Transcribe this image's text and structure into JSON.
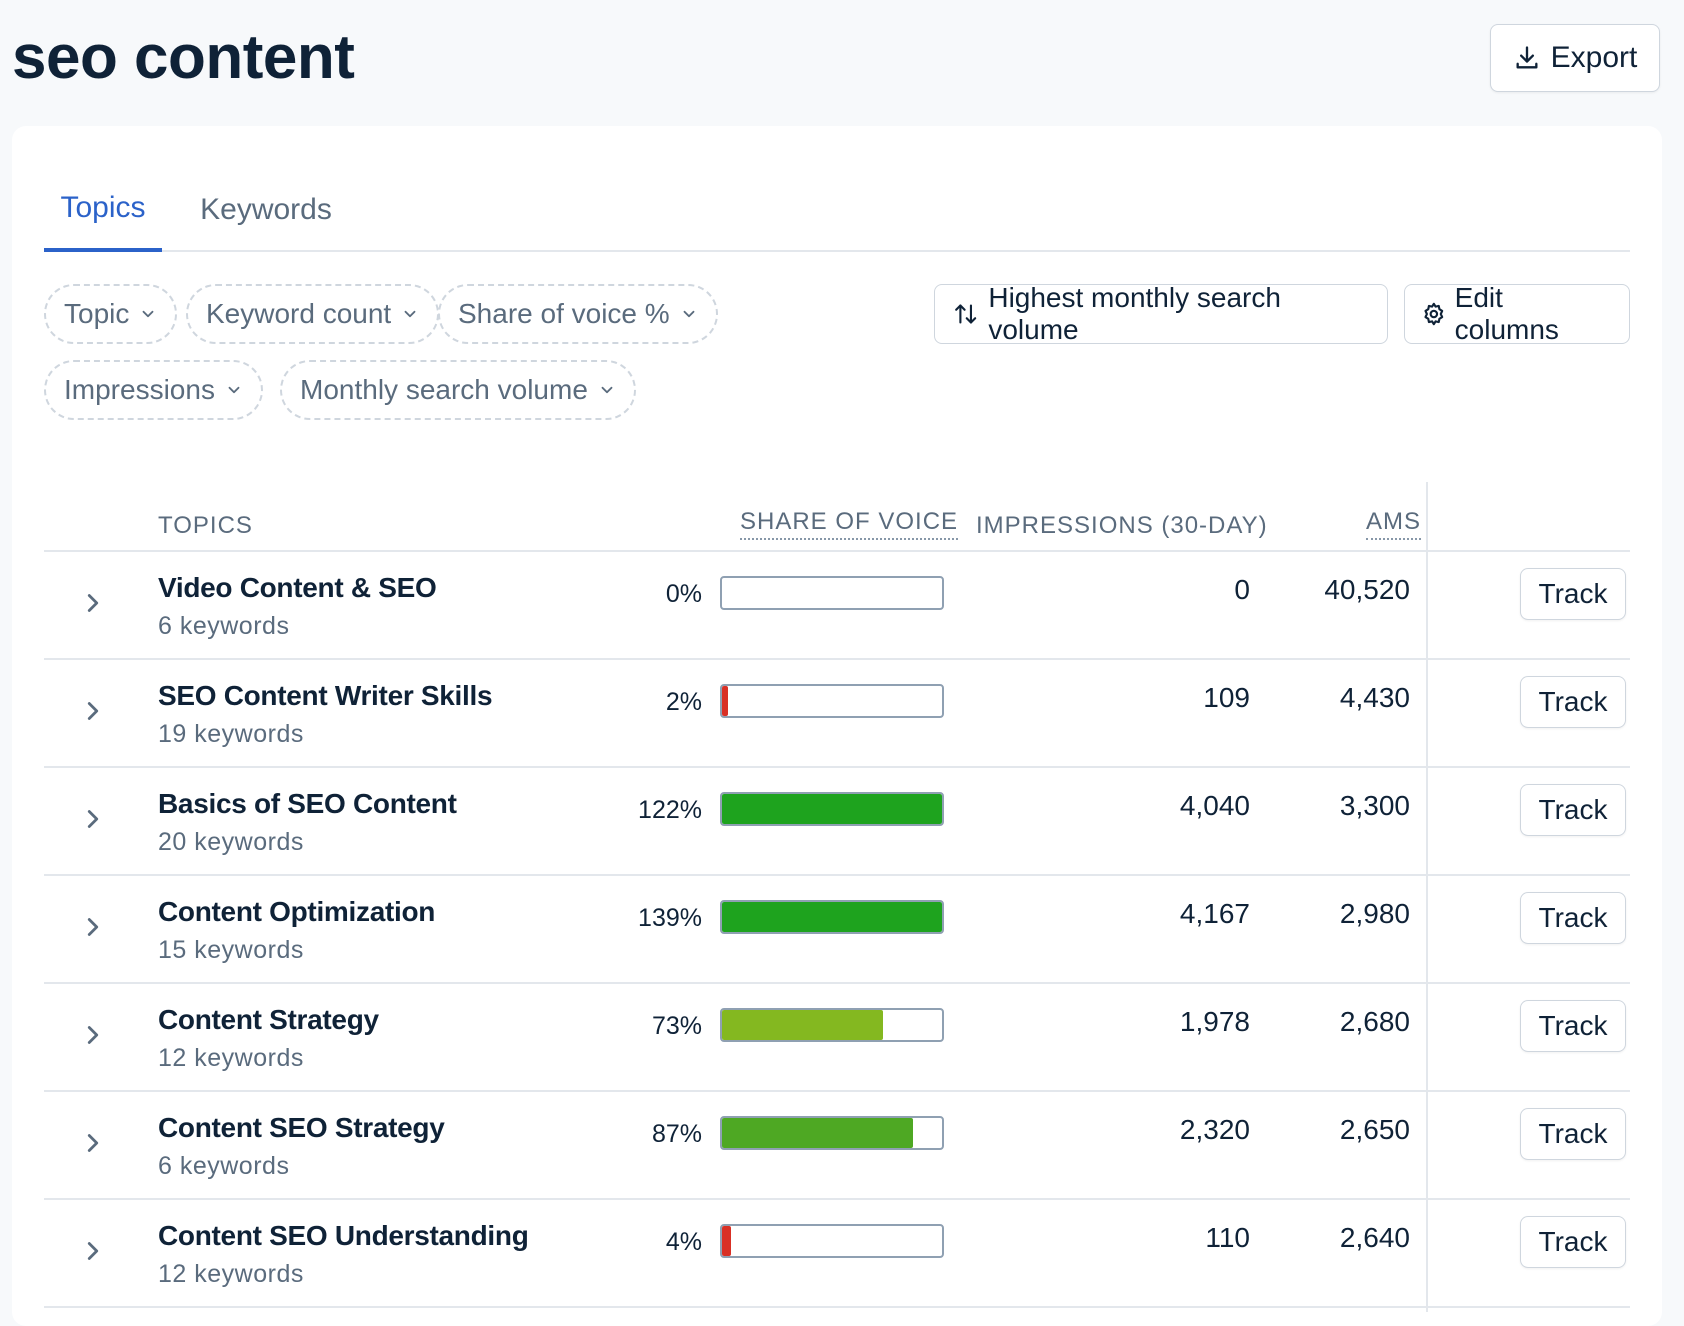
{
  "page": {
    "title": "seo content",
    "export_label": "Export"
  },
  "tabs": [
    {
      "label": "Topics",
      "active": true
    },
    {
      "label": "Keywords",
      "active": false
    }
  ],
  "filters": [
    {
      "label": "Topic"
    },
    {
      "label": "Keyword count"
    },
    {
      "label": "Share of voice %"
    },
    {
      "label": "Impressions"
    },
    {
      "label": "Monthly search volume"
    }
  ],
  "toolbar": {
    "sort_label": "Highest monthly search volume",
    "edit_columns_label": "Edit columns"
  },
  "table": {
    "headers": {
      "topics": "TOPICS",
      "share_of_voice": "SHARE OF VOICE",
      "impressions": "IMPRESSIONS (30-DAY)",
      "ams": "AMS"
    },
    "rows": [
      {
        "name": "Video Content & SEO",
        "keywords": "6 keywords",
        "sov_label": "0%",
        "sov_fraction": 0.0,
        "bar_color": "#d93025",
        "impressions": "0",
        "ams": "40,520",
        "track": "Track"
      },
      {
        "name": "SEO Content Writer Skills",
        "keywords": "19 keywords",
        "sov_label": "2%",
        "sov_fraction": 0.02,
        "bar_color": "#d93025",
        "impressions": "109",
        "ams": "4,430",
        "track": "Track"
      },
      {
        "name": "Basics of SEO Content",
        "keywords": "20 keywords",
        "sov_label": "122%",
        "sov_fraction": 1.0,
        "bar_color": "#1ea31e",
        "impressions": "4,040",
        "ams": "3,300",
        "track": "Track"
      },
      {
        "name": "Content Optimization",
        "keywords": "15 keywords",
        "sov_label": "139%",
        "sov_fraction": 1.0,
        "bar_color": "#1ea31e",
        "impressions": "4,167",
        "ams": "2,980",
        "track": "Track"
      },
      {
        "name": "Content Strategy",
        "keywords": "12 keywords",
        "sov_label": "73%",
        "sov_fraction": 0.73,
        "bar_color": "#84b820",
        "impressions": "1,978",
        "ams": "2,680",
        "track": "Track"
      },
      {
        "name": "Content SEO Strategy",
        "keywords": "6 keywords",
        "sov_label": "87%",
        "sov_fraction": 0.87,
        "bar_color": "#4ea823",
        "impressions": "2,320",
        "ams": "2,650",
        "track": "Track"
      },
      {
        "name": "Content SEO Understanding",
        "keywords": "12 keywords",
        "sov_label": "4%",
        "sov_fraction": 0.04,
        "bar_color": "#d93025",
        "impressions": "110",
        "ams": "2,640",
        "track": "Track"
      }
    ]
  }
}
